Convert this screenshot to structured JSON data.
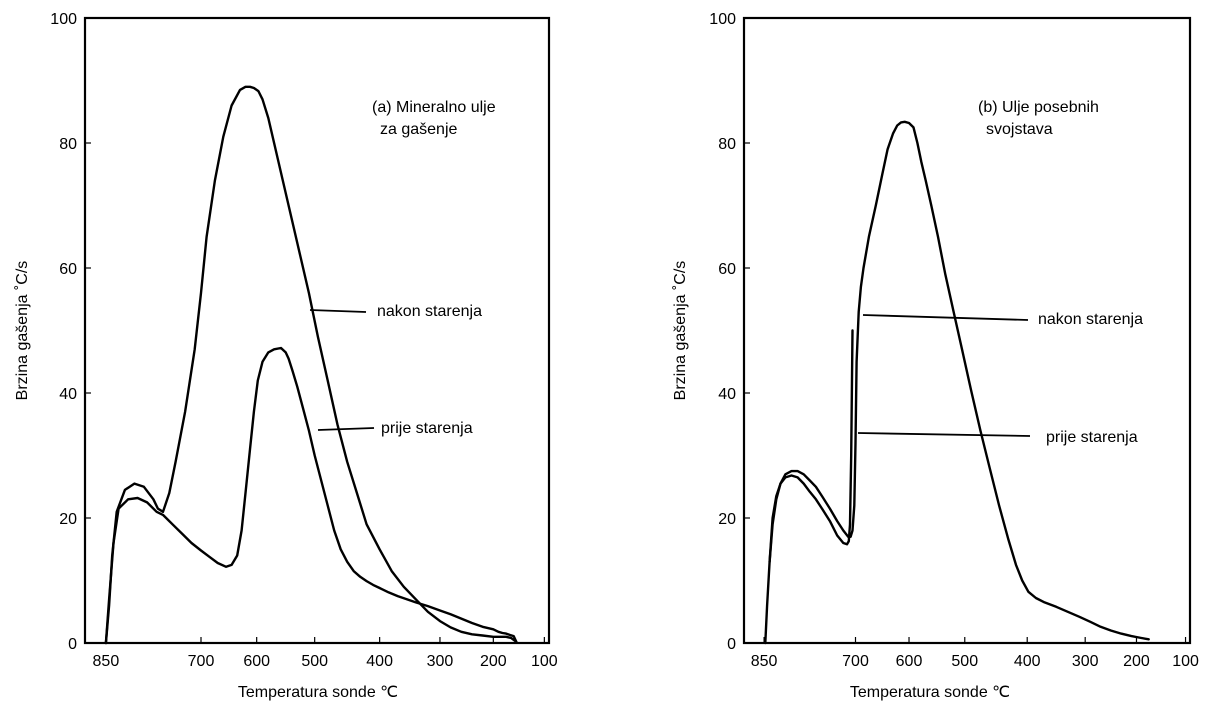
{
  "chart_data": [
    {
      "type": "line",
      "title": "(a) Mineralno ulje\nza gašenje",
      "xlabel": "Temperatura sonde ℃",
      "ylabel": "Brzina gašenja ˚C/s",
      "xlim": [
        850,
        100
      ],
      "ylim": [
        0,
        100
      ],
      "xticks": [
        "850",
        "700",
        "600",
        "500",
        "400",
        "300",
        "200",
        "100"
      ],
      "yticks": [
        "0",
        "20",
        "40",
        "60",
        "80",
        "100"
      ],
      "grid": false,
      "series": [
        {
          "name": "nakon starenja",
          "x": [
            850,
            845,
            840,
            833,
            820,
            805,
            790,
            775,
            768,
            760,
            750,
            740,
            725,
            710,
            700,
            690,
            675,
            660,
            645,
            630,
            620,
            612,
            605,
            597,
            590,
            580,
            570,
            555,
            540,
            525,
            510,
            495,
            480,
            465,
            450,
            435,
            420,
            400,
            380,
            360,
            340,
            320,
            300,
            280,
            260,
            240,
            220,
            200,
            185,
            175,
            165,
            155
          ],
          "y": [
            0,
            6,
            14,
            21,
            24.5,
            25.5,
            25,
            23,
            21.5,
            21,
            24,
            29,
            37,
            47,
            56,
            65,
            74,
            81,
            86,
            88.5,
            89,
            89,
            88.8,
            88.3,
            87,
            84,
            80,
            74,
            68,
            62,
            56,
            49,
            42,
            35,
            29,
            24,
            19,
            15,
            11.5,
            9,
            7,
            5,
            3.5,
            2.5,
            1.8,
            1.4,
            1.2,
            1,
            1,
            1,
            0.8,
            0.2
          ]
        },
        {
          "name": "prije starenja",
          "x": [
            850,
            845,
            838,
            830,
            815,
            800,
            785,
            770,
            760,
            745,
            730,
            715,
            700,
            685,
            670,
            655,
            645,
            635,
            627,
            620,
            612,
            605,
            598,
            590,
            580,
            570,
            558,
            550,
            545,
            538,
            530,
            520,
            510,
            500,
            490,
            480,
            470,
            460,
            450,
            440,
            430,
            420,
            410,
            400,
            385,
            370,
            355,
            340,
            320,
            300,
            280,
            260,
            240,
            220,
            200,
            190,
            182,
            175,
            168,
            160,
            155
          ],
          "y": [
            0,
            7,
            16,
            21.5,
            23,
            23.2,
            22.5,
            21,
            20.5,
            19,
            17.5,
            16,
            14.8,
            13.8,
            12.8,
            12.2,
            12.5,
            14,
            18,
            24,
            31,
            37,
            42,
            45,
            46.5,
            47,
            47.2,
            46.5,
            45.5,
            43.5,
            41,
            37.5,
            34,
            30,
            26,
            22,
            18,
            15,
            13,
            11.5,
            10.6,
            9.9,
            9.3,
            8.8,
            8.1,
            7.5,
            7,
            6.5,
            5.9,
            5.2,
            4.6,
            3.9,
            3.2,
            2.6,
            2.2,
            1.8,
            1.6,
            1.5,
            1.3,
            1.1,
            0.2
          ]
        }
      ],
      "annotations": [
        "nakon starenja",
        "prije starenja"
      ]
    },
    {
      "type": "line",
      "title": "(b) Ulje posebnih\nsvojstava",
      "xlabel": "Temperatura sonde ℃",
      "ylabel": "Brzina gašenja ˚C/s",
      "xlim": [
        850,
        100
      ],
      "ylim": [
        0,
        100
      ],
      "xticks": [
        "850",
        "700",
        "600",
        "500",
        "400",
        "300",
        "200",
        "100"
      ],
      "yticks": [
        "0",
        "20",
        "40",
        "60",
        "80",
        "100"
      ],
      "grid": false,
      "series": [
        {
          "name": "nakon starenja",
          "x": [
            848,
            845,
            841,
            836,
            830,
            823,
            815,
            805,
            795,
            785,
            775,
            765,
            755,
            742,
            730,
            720,
            712,
            708,
            705,
            702,
            700,
            698,
            694,
            690,
            685,
            675,
            662,
            650,
            640,
            630,
            622,
            615,
            608,
            600,
            592,
            585,
            578,
            570,
            560,
            548,
            535,
            520,
            505,
            490,
            475,
            460,
            445,
            430,
            418,
            408,
            398,
            385,
            370,
            350,
            330,
            310,
            290,
            270,
            250,
            230,
            210,
            190,
            175
          ],
          "y": [
            0,
            6,
            13,
            19,
            23,
            25.5,
            27,
            27.5,
            27.5,
            27,
            26,
            25,
            23.5,
            21.5,
            19.5,
            18,
            17,
            17,
            18,
            22,
            32,
            45,
            53,
            57,
            60,
            65,
            70,
            75,
            79,
            81.5,
            82.8,
            83.3,
            83.4,
            83.2,
            82.5,
            80,
            77,
            74,
            70,
            65,
            59,
            53,
            47,
            40.5,
            34,
            28,
            22,
            16.5,
            12.5,
            10,
            8.2,
            7.2,
            6.5,
            5.8,
            5,
            4.2,
            3.4,
            2.6,
            2,
            1.5,
            1.1,
            0.8,
            0.6
          ]
        },
        {
          "name": "prije starenja",
          "x": [
            841,
            836,
            830,
            823,
            815,
            805,
            795,
            785,
            775,
            765,
            755,
            742,
            730,
            720,
            714,
            711,
            709,
            707,
            705
          ],
          "y": [
            13,
            20,
            23.5,
            25.5,
            26.5,
            26.8,
            26.5,
            25.5,
            24.2,
            23,
            21.5,
            19.5,
            17.2,
            16,
            15.8,
            16.3,
            19,
            30,
            50
          ]
        }
      ],
      "annotations": [
        "nakon starenja",
        "prije starenja"
      ]
    }
  ]
}
